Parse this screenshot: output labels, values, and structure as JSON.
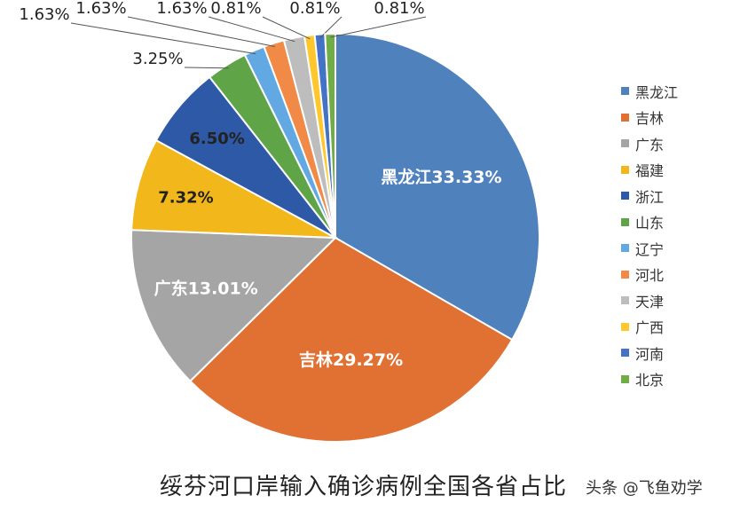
{
  "chart_data": {
    "type": "pie",
    "title": "绥芬河口岸输入确诊病例全国各省占比",
    "slices": [
      {
        "label": "黑龙江",
        "value": 33.33,
        "display": "黑龙江33.33%",
        "color": "#4f81bd",
        "inside": true
      },
      {
        "label": "吉林",
        "value": 29.27,
        "display": "吉林29.27%",
        "color": "#e07132",
        "inside": true
      },
      {
        "label": "广东",
        "value": 13.01,
        "display": "广东13.01%",
        "color": "#a5a5a5",
        "inside": true
      },
      {
        "label": "福建",
        "value": 7.32,
        "display": "7.32%",
        "color": "#f2b71b",
        "inside": true
      },
      {
        "label": "浙江",
        "value": 6.5,
        "display": "6.50%",
        "color": "#2e59a6",
        "inside": true
      },
      {
        "label": "山东",
        "value": 3.25,
        "display": "3.25%",
        "color": "#5fa446",
        "inside": false
      },
      {
        "label": "辽宁",
        "value": 1.63,
        "display": "1.63%",
        "color": "#62a8e3",
        "inside": false
      },
      {
        "label": "河北",
        "value": 1.63,
        "display": "1.63%",
        "color": "#f08a46",
        "inside": false
      },
      {
        "label": "天津",
        "value": 1.63,
        "display": "1.63%",
        "color": "#bdbdbd",
        "inside": false
      },
      {
        "label": "广西",
        "value": 0.81,
        "display": "0.81%",
        "color": "#ffc72c",
        "inside": false
      },
      {
        "label": "河南",
        "value": 0.81,
        "display": "0.81%",
        "color": "#4472c4",
        "inside": false
      },
      {
        "label": "北京",
        "value": 0.81,
        "display": "0.81%",
        "color": "#70ad47",
        "inside": false
      }
    ],
    "legend_position": "right"
  },
  "watermark": "头条 @飞鱼劝学"
}
